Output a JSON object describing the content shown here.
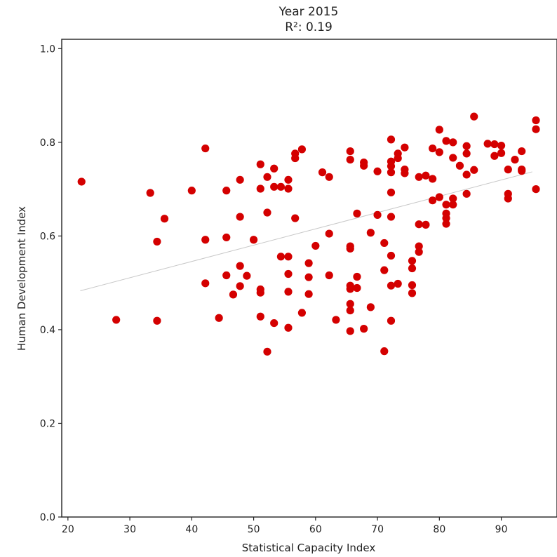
{
  "chart_data": {
    "type": "scatter",
    "title": "Year 2015",
    "subtitle": "R²: 0.19",
    "xlabel": "Statistical Capacity Index",
    "ylabel": "Human Development Index",
    "xlim": [
      19,
      99
    ],
    "ylim": [
      0.0,
      1.02
    ],
    "xticks": [
      20,
      30,
      40,
      50,
      60,
      70,
      80,
      90
    ],
    "yticks": [
      0.0,
      0.2,
      0.4,
      0.6,
      0.8,
      1.0
    ],
    "ytick_labels": [
      "0.0",
      "0.2",
      "0.4",
      "0.6",
      "0.8",
      "1.0"
    ],
    "grid": false,
    "marker_color": "#d40000",
    "trend_color": "#c8c8c8",
    "trend": {
      "x": [
        22,
        95
      ],
      "y": [
        0.483,
        0.737
      ]
    },
    "points": [
      [
        22.2,
        0.716
      ],
      [
        27.8,
        0.421
      ],
      [
        33.3,
        0.692
      ],
      [
        34.4,
        0.588
      ],
      [
        34.4,
        0.419
      ],
      [
        35.6,
        0.637
      ],
      [
        40.0,
        0.697
      ],
      [
        42.2,
        0.787
      ],
      [
        42.2,
        0.592
      ],
      [
        42.2,
        0.499
      ],
      [
        44.4,
        0.425
      ],
      [
        45.6,
        0.697
      ],
      [
        45.6,
        0.597
      ],
      [
        45.6,
        0.516
      ],
      [
        46.7,
        0.475
      ],
      [
        47.8,
        0.72
      ],
      [
        47.8,
        0.641
      ],
      [
        47.8,
        0.536
      ],
      [
        47.8,
        0.493
      ],
      [
        48.9,
        0.515
      ],
      [
        50.0,
        0.592
      ],
      [
        51.1,
        0.753
      ],
      [
        51.1,
        0.701
      ],
      [
        51.1,
        0.486
      ],
      [
        51.1,
        0.479
      ],
      [
        51.1,
        0.428
      ],
      [
        52.2,
        0.726
      ],
      [
        52.2,
        0.65
      ],
      [
        52.2,
        0.353
      ],
      [
        53.3,
        0.744
      ],
      [
        53.3,
        0.705
      ],
      [
        53.3,
        0.414
      ],
      [
        54.4,
        0.705
      ],
      [
        54.4,
        0.556
      ],
      [
        55.6,
        0.72
      ],
      [
        55.6,
        0.701
      ],
      [
        55.6,
        0.556
      ],
      [
        55.6,
        0.519
      ],
      [
        55.6,
        0.481
      ],
      [
        55.6,
        0.404
      ],
      [
        56.7,
        0.776
      ],
      [
        56.7,
        0.766
      ],
      [
        56.7,
        0.638
      ],
      [
        57.8,
        0.785
      ],
      [
        57.8,
        0.436
      ],
      [
        58.9,
        0.542
      ],
      [
        58.9,
        0.512
      ],
      [
        58.9,
        0.476
      ],
      [
        60.0,
        0.579
      ],
      [
        61.1,
        0.736
      ],
      [
        62.2,
        0.726
      ],
      [
        62.2,
        0.605
      ],
      [
        62.2,
        0.516
      ],
      [
        63.3,
        0.421
      ],
      [
        65.6,
        0.781
      ],
      [
        65.6,
        0.763
      ],
      [
        65.6,
        0.578
      ],
      [
        65.6,
        0.573
      ],
      [
        65.6,
        0.494
      ],
      [
        65.6,
        0.487
      ],
      [
        65.6,
        0.455
      ],
      [
        65.6,
        0.441
      ],
      [
        65.6,
        0.397
      ],
      [
        66.7,
        0.648
      ],
      [
        66.7,
        0.513
      ],
      [
        66.7,
        0.489
      ],
      [
        67.8,
        0.757
      ],
      [
        67.8,
        0.75
      ],
      [
        67.8,
        0.402
      ],
      [
        68.9,
        0.607
      ],
      [
        68.9,
        0.448
      ],
      [
        70.0,
        0.738
      ],
      [
        70.0,
        0.645
      ],
      [
        71.1,
        0.585
      ],
      [
        71.1,
        0.527
      ],
      [
        71.1,
        0.354
      ],
      [
        72.2,
        0.806
      ],
      [
        72.2,
        0.759
      ],
      [
        72.2,
        0.749
      ],
      [
        72.2,
        0.736
      ],
      [
        72.2,
        0.693
      ],
      [
        72.2,
        0.641
      ],
      [
        72.2,
        0.558
      ],
      [
        72.2,
        0.494
      ],
      [
        72.2,
        0.419
      ],
      [
        73.3,
        0.776
      ],
      [
        73.3,
        0.766
      ],
      [
        73.3,
        0.498
      ],
      [
        74.4,
        0.789
      ],
      [
        74.4,
        0.742
      ],
      [
        74.4,
        0.734
      ],
      [
        75.6,
        0.547
      ],
      [
        75.6,
        0.531
      ],
      [
        75.6,
        0.495
      ],
      [
        75.6,
        0.478
      ],
      [
        76.7,
        0.726
      ],
      [
        76.7,
        0.625
      ],
      [
        76.7,
        0.578
      ],
      [
        76.7,
        0.566
      ],
      [
        77.8,
        0.729
      ],
      [
        77.8,
        0.624
      ],
      [
        78.9,
        0.787
      ],
      [
        78.9,
        0.722
      ],
      [
        78.9,
        0.676
      ],
      [
        80.0,
        0.827
      ],
      [
        80.0,
        0.779
      ],
      [
        80.0,
        0.683
      ],
      [
        81.1,
        0.803
      ],
      [
        81.1,
        0.667
      ],
      [
        81.1,
        0.648
      ],
      [
        81.1,
        0.638
      ],
      [
        81.1,
        0.626
      ],
      [
        82.2,
        0.8
      ],
      [
        82.2,
        0.767
      ],
      [
        82.2,
        0.68
      ],
      [
        82.2,
        0.667
      ],
      [
        83.3,
        0.75
      ],
      [
        84.4,
        0.792
      ],
      [
        84.4,
        0.776
      ],
      [
        84.4,
        0.731
      ],
      [
        84.4,
        0.69
      ],
      [
        85.6,
        0.855
      ],
      [
        85.6,
        0.741
      ],
      [
        87.8,
        0.797
      ],
      [
        88.9,
        0.796
      ],
      [
        88.9,
        0.771
      ],
      [
        90.0,
        0.793
      ],
      [
        90.0,
        0.777
      ],
      [
        91.1,
        0.742
      ],
      [
        91.1,
        0.69
      ],
      [
        91.1,
        0.68
      ],
      [
        92.2,
        0.763
      ],
      [
        93.3,
        0.781
      ],
      [
        93.3,
        0.742
      ],
      [
        93.3,
        0.739
      ],
      [
        95.6,
        0.847
      ],
      [
        95.6,
        0.828
      ],
      [
        95.6,
        0.7
      ]
    ]
  }
}
